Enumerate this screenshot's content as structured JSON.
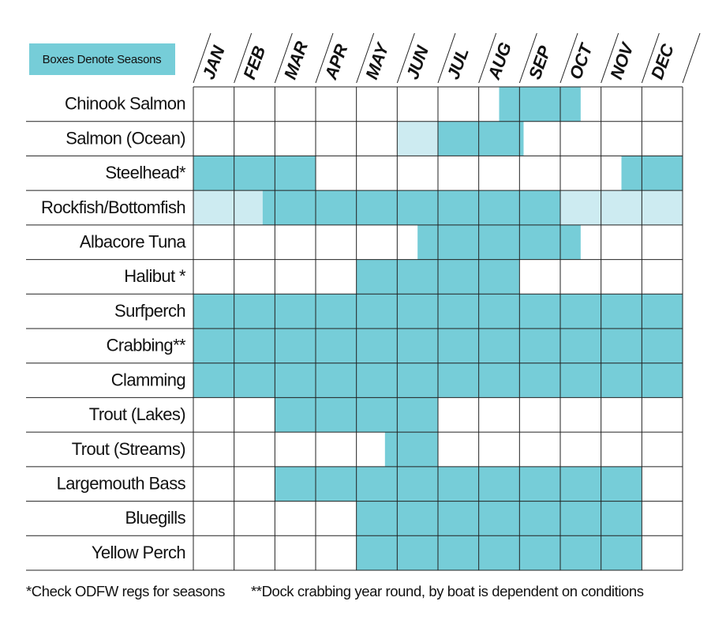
{
  "legend": {
    "label": "Boxes Denote Seasons",
    "color": "#76cdd8"
  },
  "colors": {
    "dark": "#76cdd8",
    "light": "#cdebf1"
  },
  "months": [
    "JAN",
    "FEB",
    "MAR",
    "APR",
    "MAY",
    "JUN",
    "JUL",
    "AUG",
    "SEP",
    "OCT",
    "NOV",
    "DEC"
  ],
  "rows": [
    {
      "name": "Chinook Salmon",
      "seasons": [
        {
          "start": 7.5,
          "end": 9.5,
          "shade": "dark"
        }
      ]
    },
    {
      "name": "Salmon (Ocean)",
      "seasons": [
        {
          "start": 5,
          "end": 6,
          "shade": "light"
        },
        {
          "start": 6,
          "end": 8.1,
          "shade": "dark"
        }
      ]
    },
    {
      "name": "Steelhead*",
      "seasons": [
        {
          "start": 0,
          "end": 3,
          "shade": "dark"
        },
        {
          "start": 10.5,
          "end": 12,
          "shade": "dark"
        }
      ]
    },
    {
      "name": "Rockfish/Bottomfish",
      "seasons": [
        {
          "start": 0,
          "end": 1.7,
          "shade": "light"
        },
        {
          "start": 1.7,
          "end": 9,
          "shade": "dark"
        },
        {
          "start": 9,
          "end": 12,
          "shade": "light"
        }
      ]
    },
    {
      "name": "Albacore Tuna",
      "seasons": [
        {
          "start": 5.5,
          "end": 9.5,
          "shade": "dark"
        }
      ]
    },
    {
      "name": "Halibut *",
      "seasons": [
        {
          "start": 4,
          "end": 8,
          "shade": "dark"
        }
      ]
    },
    {
      "name": "Surfperch",
      "seasons": [
        {
          "start": 0,
          "end": 12,
          "shade": "dark"
        }
      ]
    },
    {
      "name": "Crabbing**",
      "seasons": [
        {
          "start": 0,
          "end": 12,
          "shade": "dark"
        }
      ]
    },
    {
      "name": "Clamming",
      "seasons": [
        {
          "start": 0,
          "end": 12,
          "shade": "dark"
        }
      ]
    },
    {
      "name": "Trout (Lakes)",
      "seasons": [
        {
          "start": 2,
          "end": 6,
          "shade": "dark"
        }
      ]
    },
    {
      "name": "Trout (Streams)",
      "seasons": [
        {
          "start": 4.7,
          "end": 6,
          "shade": "dark"
        }
      ]
    },
    {
      "name": "Largemouth Bass",
      "seasons": [
        {
          "start": 2,
          "end": 11,
          "shade": "dark"
        }
      ]
    },
    {
      "name": "Bluegills",
      "seasons": [
        {
          "start": 4,
          "end": 11,
          "shade": "dark"
        }
      ]
    },
    {
      "name": "Yellow Perch",
      "seasons": [
        {
          "start": 4,
          "end": 11,
          "shade": "dark"
        }
      ]
    }
  ],
  "notes": [
    "*Check ODFW regs for seasons",
    "**Dock crabbing year round, by boat is dependent on conditions"
  ]
}
